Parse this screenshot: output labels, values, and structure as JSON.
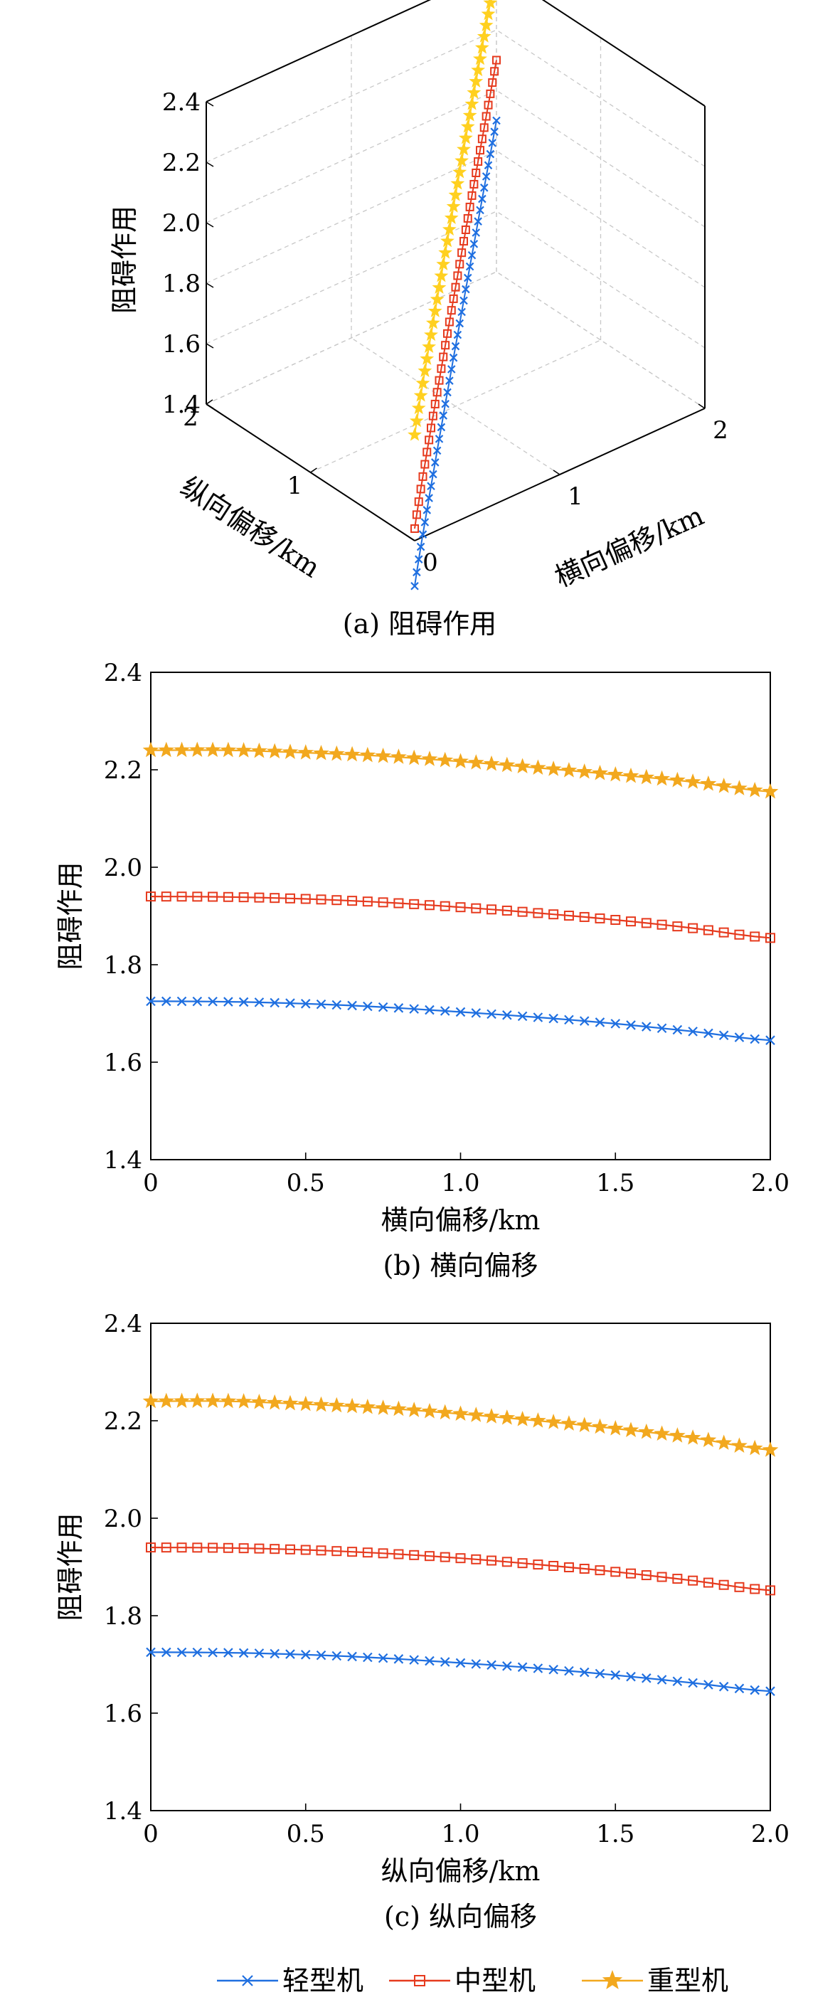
{
  "colors": {
    "light": "#1f6fe0",
    "medium": "#e63a1e",
    "heavy": "#f2a81e",
    "heavy3d": "#ffd020"
  },
  "legend": [
    {
      "key": "light",
      "label": "轻型机",
      "marker": "x"
    },
    {
      "key": "medium",
      "label": "中型机",
      "marker": "square"
    },
    {
      "key": "heavy",
      "label": "重型机",
      "marker": "star"
    }
  ],
  "chart_data": [
    {
      "id": "a",
      "type": "scatter",
      "caption": "(a) 阻碍作用",
      "xlabel": "横向偏移/km",
      "ylabel": "纵向偏移/km",
      "zlabel": "阻碍作用",
      "xticks": [
        "0",
        "1",
        "2"
      ],
      "yticks": [
        "0",
        "1",
        "2"
      ],
      "zticks": [
        "1.4",
        "1.6",
        "1.8",
        "2.0",
        "2.2",
        "2.4"
      ],
      "xlim": [
        0,
        2
      ],
      "ylim": [
        0,
        2
      ],
      "zlim": [
        1.4,
        2.4
      ],
      "grid": true,
      "series": [
        {
          "key": "light",
          "name": "轻型机",
          "z_start": 1.25,
          "z_end": 1.9
        },
        {
          "key": "medium",
          "name": "中型机",
          "z_start": 1.44,
          "z_end": 2.1
        },
        {
          "key": "heavy",
          "name": "重型机",
          "z_start": 1.75,
          "z_end": 2.4
        }
      ]
    },
    {
      "id": "b",
      "type": "line",
      "caption": "(b) 横向偏移",
      "xlabel": "横向偏移/km",
      "ylabel": "阻碍作用",
      "xlim": [
        0,
        2
      ],
      "ylim": [
        1.4,
        2.4
      ],
      "xticks": [
        "0",
        "0.5",
        "1.0",
        "1.5",
        "2.0"
      ],
      "yticks": [
        "1.4",
        "1.6",
        "1.8",
        "2.0",
        "2.2",
        "2.4"
      ],
      "x": [
        0,
        0.25,
        0.5,
        0.75,
        1.0,
        1.25,
        1.5,
        1.75,
        2.0
      ],
      "series": [
        {
          "key": "light",
          "name": "轻型机",
          "values": [
            1.725,
            1.724,
            1.72,
            1.713,
            1.703,
            1.692,
            1.679,
            1.663,
            1.645
          ]
        },
        {
          "key": "medium",
          "name": "中型机",
          "values": [
            1.94,
            1.939,
            1.935,
            1.928,
            1.918,
            1.906,
            1.892,
            1.875,
            1.855
          ]
        },
        {
          "key": "heavy",
          "name": "重型机",
          "values": [
            2.24,
            2.24,
            2.235,
            2.228,
            2.217,
            2.204,
            2.19,
            2.175,
            2.155
          ]
        }
      ]
    },
    {
      "id": "c",
      "type": "line",
      "caption": "(c) 纵向偏移",
      "xlabel": "纵向偏移/km",
      "ylabel": "阻碍作用",
      "xlim": [
        0,
        2
      ],
      "ylim": [
        1.4,
        2.4
      ],
      "xticks": [
        "0",
        "0.5",
        "1.0",
        "1.5",
        "2.0"
      ],
      "yticks": [
        "1.4",
        "1.6",
        "1.8",
        "2.0",
        "2.2",
        "2.4"
      ],
      "x": [
        0,
        0.25,
        0.5,
        0.75,
        1.0,
        1.25,
        1.5,
        1.75,
        2.0
      ],
      "series": [
        {
          "key": "light",
          "name": "轻型机",
          "values": [
            1.725,
            1.724,
            1.72,
            1.713,
            1.703,
            1.692,
            1.678,
            1.662,
            1.645
          ]
        },
        {
          "key": "medium",
          "name": "中型机",
          "values": [
            1.94,
            1.939,
            1.935,
            1.928,
            1.918,
            1.905,
            1.89,
            1.872,
            1.852
          ]
        },
        {
          "key": "heavy",
          "name": "重型机",
          "values": [
            2.24,
            2.24,
            2.234,
            2.226,
            2.214,
            2.2,
            2.184,
            2.165,
            2.14
          ]
        }
      ]
    }
  ]
}
